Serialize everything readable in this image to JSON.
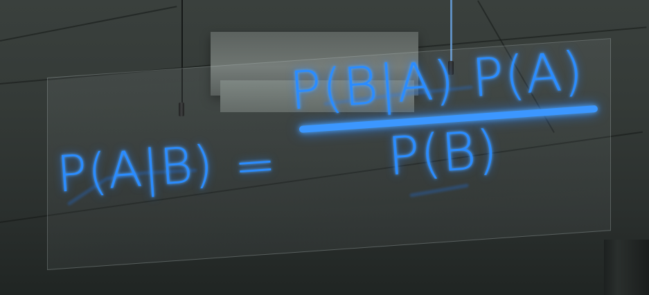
{
  "scene": {
    "neon_color": "#1d7bff",
    "sign": {
      "lhs": "P(A|B)",
      "equals": "=",
      "numerator": "P(B|A) P(A)",
      "denominator": "P(B)"
    }
  }
}
